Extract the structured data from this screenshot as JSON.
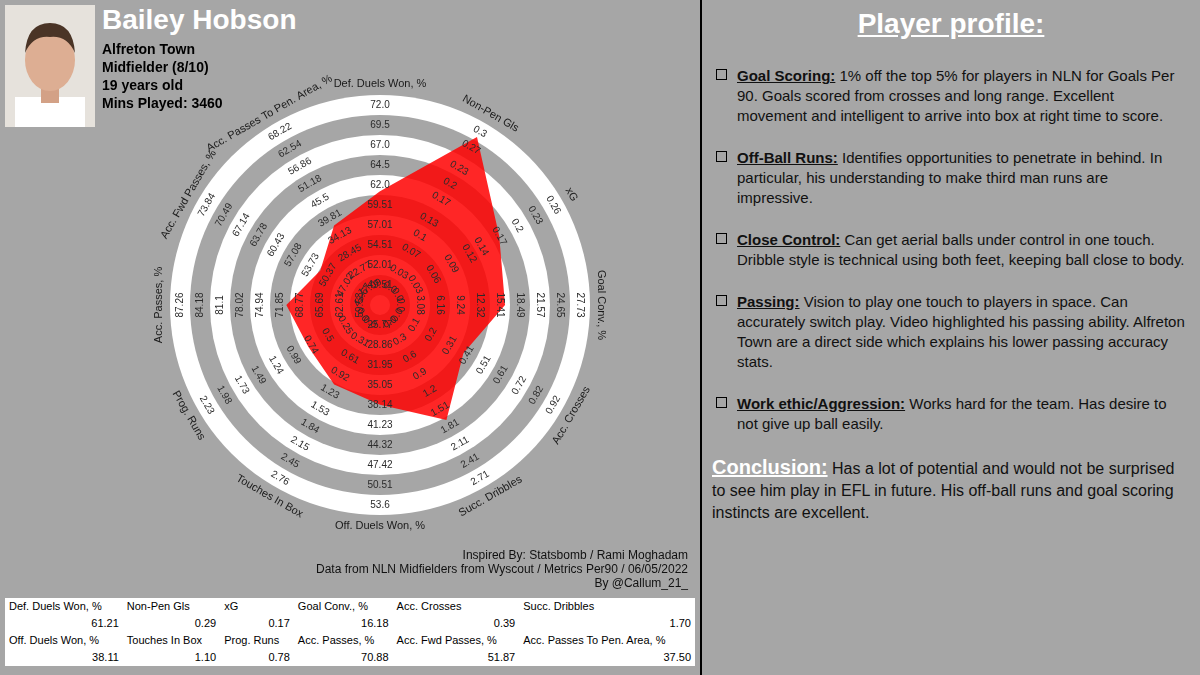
{
  "header": {
    "title": "Bailey Hobson",
    "lines": [
      "Alfreton Town",
      "Midfielder (8/10)",
      "19 years old",
      "Mins Played: 3460"
    ]
  },
  "chart_data": {
    "type": "radar",
    "categories": [
      "Def. Duels Won, %",
      "Non-Pen Gls",
      "xG",
      "Goal Conv., %",
      "Acc. Crosses",
      "Succ. Dribbles",
      "Off. Duels Won, %",
      "Touches In Box",
      "Prog. Runs",
      "Acc. Passes, %",
      "Acc. Fwd Passes, %",
      "Acc. Passes To Pen. Area, %"
    ],
    "values": [
      61.21,
      0.29,
      0.17,
      16.18,
      0.39,
      1.7,
      38.11,
      1.1,
      0.78,
      70.88,
      51.87,
      37.5
    ],
    "value_labels": [
      "61.21",
      "0.29",
      "0.17",
      "16.18",
      "0.39",
      "1.70",
      "38.11",
      "1.10",
      "0.78",
      "70.88",
      "51.87",
      "37.50"
    ],
    "axis_ticks": [
      [
        49.51,
        52.01,
        54.51,
        57.01,
        59.51,
        {
          "value": 62,
          "label": "62.0"
        },
        64.5,
        {
          "value": 67,
          "label": "67.0"
        },
        69.5,
        {
          "value": 72,
          "label": "72.0"
        }
      ],
      [
        {
          "value": 0,
          "label": "0.0"
        },
        0.03,
        0.07,
        0.1,
        0.13,
        0.17,
        0.2,
        0.23,
        0.27,
        0.3
      ],
      [
        {
          "value": 0,
          "label": "0.0"
        },
        0.03,
        0.06,
        0.09,
        0.12,
        0.14,
        0.17,
        0.2,
        0.23,
        0.26
      ],
      [
        {
          "value": 0,
          "label": "0.0"
        },
        3.08,
        6.16,
        9.24,
        12.32,
        15.41,
        18.49,
        21.57,
        24.65,
        27.73
      ],
      [
        {
          "value": 0,
          "label": "0.0"
        },
        0.1,
        0.2,
        0.31,
        0.41,
        0.51,
        0.61,
        0.72,
        0.82,
        0.92
      ],
      [
        {
          "value": 0,
          "label": "0.0"
        },
        0.3,
        0.6,
        0.9,
        1.2,
        1.51,
        1.81,
        2.11,
        2.41,
        2.71
      ],
      [
        25.77,
        28.86,
        31.95,
        35.05,
        38.14,
        41.23,
        44.32,
        47.42,
        50.51,
        53.6
      ],
      [
        {
          "value": 0,
          "label": "0.0"
        },
        0.31,
        0.61,
        0.92,
        1.23,
        1.53,
        1.84,
        2.15,
        2.45,
        2.76
      ],
      [
        {
          "value": 0,
          "label": "0.0"
        },
        0.25,
        0.5,
        0.74,
        0.99,
        1.24,
        1.49,
        1.73,
        1.98,
        2.23
      ],
      [
        59.53,
        62.61,
        65.69,
        68.77,
        71.85,
        74.94,
        78.02,
        81.1,
        84.18,
        87.26
      ],
      [
        43.67,
        47.02,
        50.37,
        53.73,
        57.08,
        60.43,
        63.78,
        67.14,
        70.49,
        73.84
      ],
      [
        17.09,
        22.77,
        28.45,
        34.13,
        39.81,
        45.5,
        51.18,
        56.86,
        62.54,
        68.22
      ]
    ],
    "color": "#ff0000",
    "grid": true
  },
  "credits": [
    "Inspired By: Statsbomb / Rami Moghadam",
    "Data from NLN Midfielders from Wyscout / Metrics Per90 / 06/05/2022",
    "By @Callum_21_"
  ],
  "profile": {
    "title": "Player profile:",
    "items": [
      {
        "heading": "Goal Scoring:",
        "text": "1% off the top 5% for players in NLN for Goals Per 90. Goals scored from crosses and long range. Excellent movement and intelligent to arrive into box at right time to score."
      },
      {
        "heading": "Off-Ball Runs:",
        "text": "Identifies opportunities to penetrate in behind. In particular, his understanding to make third man runs are impressive."
      },
      {
        "heading": "Close Control:",
        "text": "Can get aerial balls under control in one touch. Dribble style is technical using both feet, keeping ball close to body."
      },
      {
        "heading": "Passing:",
        "text": "Vision to play one touch to players in space. Can accurately switch play. Video highlighted his passing ability. Alfreton Town are a direct side which explains his lower passing accuracy stats."
      },
      {
        "heading": "Work ethic/Aggression:",
        "text": "Works hard for the team. Has desire to not give up ball easily."
      }
    ],
    "conclusion": {
      "heading": "Conclusion:",
      "text": "Has a lot of potential and would not be surprised to see him play in EFL in future. His off-ball runs and goal scoring instincts are excellent."
    }
  }
}
